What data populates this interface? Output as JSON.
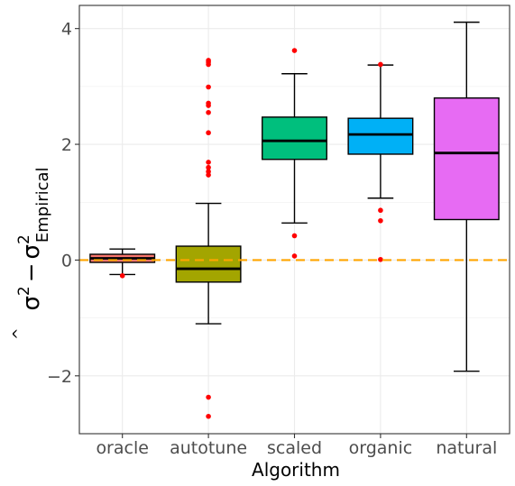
{
  "chart_data": {
    "type": "boxplot",
    "xlabel": "Algorithm",
    "ylabel_parts": {
      "sigma": "σ",
      "hat": "^",
      "sq": "2",
      "minus": "−",
      "sub": "Empirical"
    },
    "ylim": [
      -3.0,
      4.4
    ],
    "yticks": [
      -2,
      0,
      2,
      4
    ],
    "ytick_labels": [
      "−2",
      "0",
      "2",
      "4"
    ],
    "grid": true,
    "reference_line": {
      "y": 0,
      "color": "#FFA500",
      "style": "dashed"
    },
    "outlier_color": "#FF0000",
    "categories": [
      "oracle",
      "autotune",
      "scaled",
      "organic",
      "natural"
    ],
    "boxes": [
      {
        "name": "oracle",
        "color": "#F8766D",
        "whisker_low": -0.25,
        "q1": -0.04,
        "median": 0.03,
        "q3": 0.1,
        "whisker_high": 0.19,
        "outliers": [
          -0.27
        ]
      },
      {
        "name": "autotune",
        "color": "#A3A500",
        "whisker_low": -1.1,
        "q1": -0.38,
        "median": -0.15,
        "q3": 0.24,
        "whisker_high": 0.98,
        "outliers": [
          1.47,
          1.53,
          1.6,
          1.69,
          2.2,
          2.55,
          2.67,
          2.71,
          2.99,
          3.38,
          3.42,
          3.45,
          -2.37,
          -2.7
        ]
      },
      {
        "name": "scaled",
        "color": "#00BF7D",
        "whisker_low": 0.64,
        "q1": 1.74,
        "median": 2.06,
        "q3": 2.47,
        "whisker_high": 3.22,
        "outliers": [
          3.62,
          0.42,
          0.07
        ]
      },
      {
        "name": "organic",
        "color": "#00B0F6",
        "whisker_low": 1.07,
        "q1": 1.83,
        "median": 2.17,
        "q3": 2.45,
        "whisker_high": 3.37,
        "outliers": [
          3.38,
          0.86,
          0.68,
          0.01
        ]
      },
      {
        "name": "natural",
        "color": "#E76BF3",
        "whisker_low": -1.92,
        "q1": 0.7,
        "median": 1.85,
        "q3": 2.8,
        "whisker_high": 4.11,
        "outliers": []
      }
    ]
  }
}
